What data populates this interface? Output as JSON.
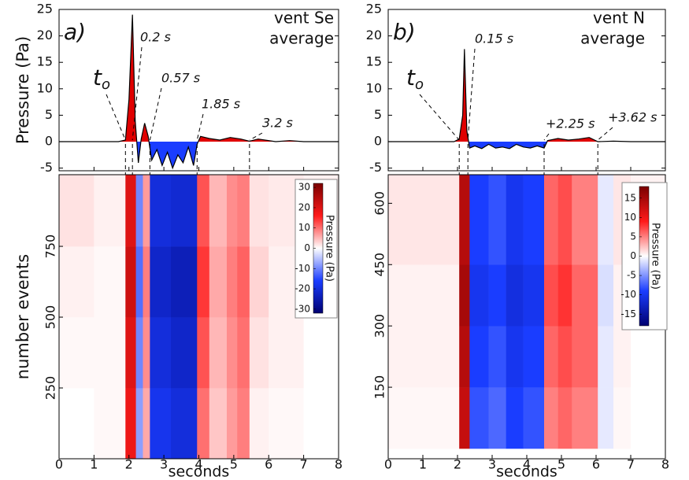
{
  "chart_data": [
    {
      "type": "area",
      "panel_label": "a)",
      "ylabel": "Pressure (Pa)",
      "title_lines": [
        "vent Se",
        "average"
      ],
      "x": [
        0,
        1.7,
        1.9,
        2.0,
        2.1,
        2.18,
        2.27,
        2.35,
        2.45,
        2.55,
        2.65,
        2.8,
        2.95,
        3.1,
        3.25,
        3.4,
        3.55,
        3.7,
        3.85,
        3.95,
        4.05,
        4.3,
        4.6,
        4.9,
        5.2,
        5.45,
        5.7,
        6.2,
        6.6,
        7,
        8
      ],
      "y": [
        0,
        0,
        0.3,
        8,
        24,
        4,
        -4,
        0.5,
        3.5,
        1,
        -3.5,
        -1.5,
        -4.5,
        -2,
        -5,
        -2.5,
        -4,
        -1,
        -4.5,
        -0.5,
        1,
        0.6,
        0.3,
        0.8,
        0.5,
        0.1,
        0.5,
        0,
        0.2,
        0,
        0
      ],
      "xlim": [
        0,
        8
      ],
      "ylim": [
        -5.5,
        25
      ],
      "yticks": [
        -5,
        0,
        5,
        10,
        15,
        20,
        25
      ],
      "pos_color": "#e00000",
      "neg_color": "#1a3dff",
      "line_color": "#000000",
      "markers": [
        {
          "x": 1.9,
          "label": "t",
          "label_sub": "o"
        },
        {
          "x": 2.1,
          "label": "0.2 s"
        },
        {
          "x": 2.6,
          "label": "0.57 s"
        },
        {
          "x": 3.95,
          "label": "1.85 s"
        },
        {
          "x": 5.45,
          "label": "3.2 s"
        }
      ]
    },
    {
      "type": "heatmap",
      "xlabel": "seconds",
      "ylabel": "number events",
      "xbins": [
        0,
        1,
        1.9,
        2.2,
        2.4,
        2.6,
        3.2,
        3.95,
        4.3,
        4.8,
        5.1,
        5.45,
        6,
        7,
        8
      ],
      "ybins": [
        0,
        250,
        500,
        750,
        1003
      ],
      "z": [
        [
          0,
          0.5,
          18,
          -8,
          6,
          -18,
          -20,
          10,
          4,
          7,
          9,
          1,
          0.5,
          0
        ],
        [
          0.5,
          0.5,
          20,
          -10,
          8,
          -20,
          -22,
          12,
          5,
          8,
          10,
          2,
          1,
          0
        ],
        [
          1,
          0.5,
          22,
          -12,
          9,
          -22,
          -24,
          14,
          6,
          9,
          11,
          3,
          1,
          0.5
        ],
        [
          2,
          1,
          20,
          -10,
          7,
          -20,
          -21,
          12,
          5,
          8,
          9,
          2,
          1.5,
          1
        ]
      ],
      "xlim": [
        0,
        8
      ],
      "xticks": [
        0,
        1,
        2,
        3,
        4,
        5,
        6,
        7,
        8
      ],
      "ylim": [
        0,
        1003
      ],
      "yticks": [
        250,
        500,
        750
      ],
      "colormap": [
        "#000070",
        "#1a3dff",
        "#ffffff",
        "#ff1a1a",
        "#7a0000"
      ],
      "colorbar": {
        "label": "Pressure (Pa)",
        "lim": [
          -32,
          32
        ],
        "ticks": [
          -30,
          -20,
          -10,
          0,
          10,
          20,
          30
        ]
      }
    },
    {
      "type": "area",
      "panel_label": "b)",
      "title_lines": [
        "vent N",
        "average"
      ],
      "x": [
        0,
        1.9,
        2.05,
        2.15,
        2.2,
        2.27,
        2.35,
        2.5,
        2.7,
        2.9,
        3.1,
        3.3,
        3.5,
        3.7,
        3.9,
        4.1,
        4.3,
        4.5,
        4.6,
        4.9,
        5.2,
        5.5,
        5.8,
        6.05,
        6.5,
        7,
        8
      ],
      "y": [
        0,
        0,
        0.5,
        5,
        17.5,
        2,
        -1.2,
        -0.8,
        -1.3,
        -0.5,
        -1.2,
        -1,
        -1.3,
        -0.5,
        -1,
        -1.2,
        -0.8,
        -1.2,
        0.2,
        0.6,
        0.3,
        0.5,
        0.8,
        0,
        0.1,
        0,
        0
      ],
      "xlim": [
        0,
        8
      ],
      "ylim": [
        -5.5,
        25
      ],
      "yticks": [
        -5,
        0,
        5,
        10,
        15,
        20,
        25
      ],
      "pos_color": "#e00000",
      "neg_color": "#1a3dff",
      "line_color": "#000000",
      "markers": [
        {
          "x": 2.05,
          "label": "t",
          "label_sub": "o"
        },
        {
          "x": 2.3,
          "label": "0.15 s"
        },
        {
          "x": 4.5,
          "label": "+2.25 s"
        },
        {
          "x": 6.05,
          "label": "+3.62 s"
        }
      ]
    },
    {
      "type": "heatmap",
      "xlabel": "seconds",
      "xbins": [
        0,
        1,
        2.05,
        2.35,
        2.9,
        3.4,
        3.9,
        4.5,
        4.9,
        5.3,
        6.05,
        6.5,
        7,
        8
      ],
      "ybins": [
        0,
        150,
        300,
        450,
        670
      ],
      "z": [
        [
          0.3,
          0.3,
          13,
          -8,
          -7,
          -9,
          -8,
          5,
          6,
          5,
          -1,
          0.3,
          0
        ],
        [
          0.5,
          0.5,
          14,
          -9,
          -8,
          -10,
          -9,
          6,
          7,
          6,
          -1,
          0.5,
          0
        ],
        [
          0.5,
          0.5,
          15,
          -10,
          -9,
          -11,
          -10,
          7,
          8,
          6,
          -1.5,
          0.5,
          0
        ],
        [
          1,
          1,
          14,
          -9,
          -8,
          -10,
          -9,
          6,
          7,
          5,
          -1,
          1,
          0.5
        ]
      ],
      "xlim": [
        0,
        8
      ],
      "xticks": [
        0,
        1,
        2,
        3,
        4,
        5,
        6,
        7,
        8
      ],
      "ylim": [
        -25,
        670
      ],
      "yticks": [
        150,
        300,
        450,
        600
      ],
      "colormap": [
        "#000070",
        "#1a3dff",
        "#ffffff",
        "#ff1a1a",
        "#7a0000"
      ],
      "colorbar": {
        "label": "Pressure (Pa)",
        "lim": [
          -18,
          18
        ],
        "ticks": [
          -15,
          -10,
          -5,
          0,
          5,
          10,
          15
        ]
      }
    }
  ]
}
